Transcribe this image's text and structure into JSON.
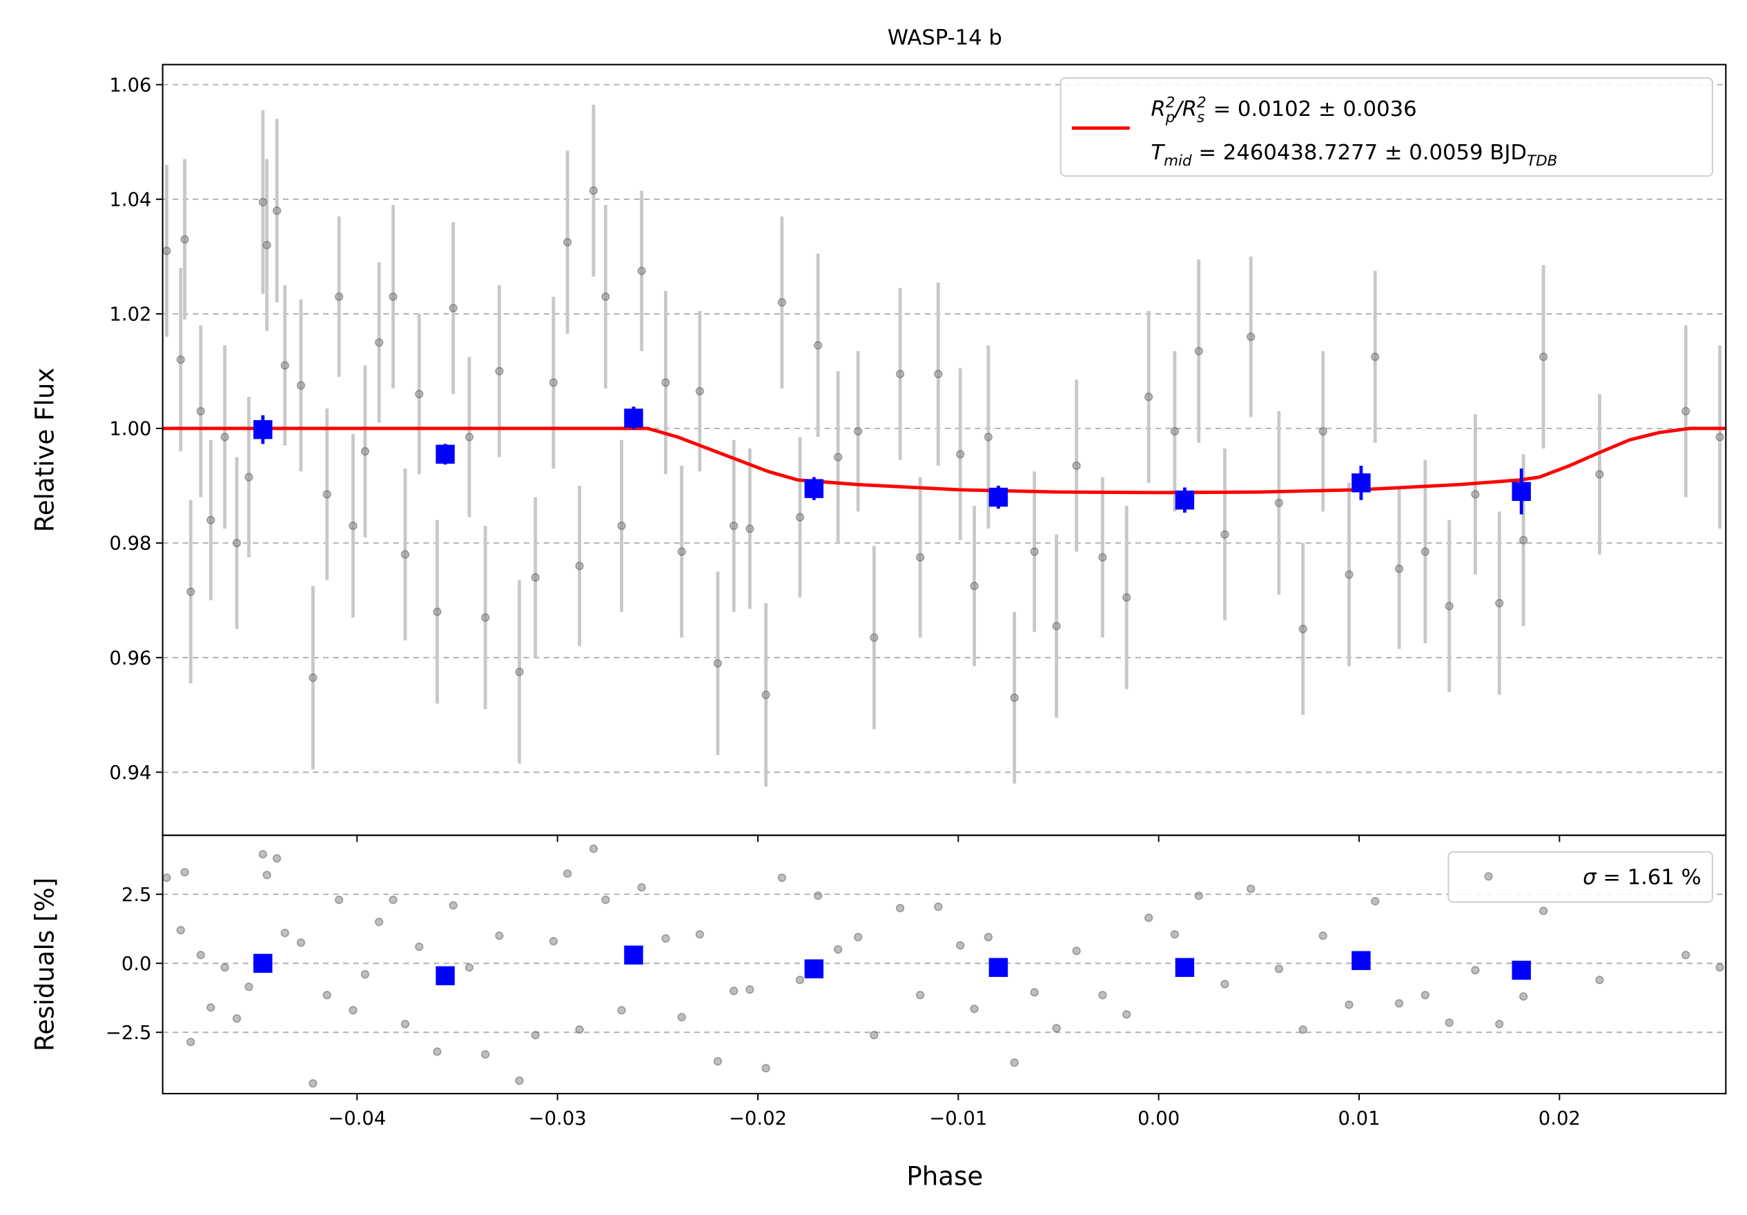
{
  "chart_data": [
    {
      "type": "scatter",
      "title": "WASP-14 b",
      "ylabel": "Relative Flux",
      "xlim": [
        -0.0497,
        0.0283
      ],
      "ylim": [
        0.929,
        1.0635
      ],
      "xticks": [
        {
          "value": -0.04,
          "label": "−0.04"
        },
        {
          "value": -0.03,
          "label": "−0.03"
        },
        {
          "value": -0.02,
          "label": "−0.02"
        },
        {
          "value": -0.01,
          "label": "−0.01"
        },
        {
          "value": 0,
          "label": "0.00"
        },
        0.01,
        0.02
      ],
      "yticks": [
        0.94,
        0.96,
        0.98,
        {
          "value": 1,
          "label": "1.00"
        },
        1.02,
        1.04,
        1.06
      ],
      "grid": true,
      "legend": "upper right",
      "points": {
        "color": "#808080",
        "errcolor": "#c8c8c8",
        "x": [
          -0.0495,
          -0.0488,
          -0.0486,
          -0.0483,
          -0.0478,
          -0.0473,
          -0.0466,
          -0.046,
          -0.0454,
          -0.0447,
          -0.0445,
          -0.044,
          -0.0436,
          -0.0428,
          -0.0422,
          -0.0415,
          -0.0409,
          -0.0402,
          -0.0396,
          -0.0389,
          -0.0382,
          -0.0376,
          -0.0369,
          -0.036,
          -0.0352,
          -0.0344,
          -0.0336,
          -0.0329,
          -0.0319,
          -0.0311,
          -0.0302,
          -0.0295,
          -0.0289,
          -0.0282,
          -0.0276,
          -0.0268,
          -0.0258,
          -0.0246,
          -0.0238,
          -0.0229,
          -0.022,
          -0.0212,
          -0.0204,
          -0.0196,
          -0.0188,
          -0.0179,
          -0.017,
          -0.016,
          -0.015,
          -0.0142,
          -0.0129,
          -0.0119,
          -0.011,
          -0.0099,
          -0.0092,
          -0.0085,
          -0.0072,
          -0.0062,
          -0.0051,
          -0.0041,
          -0.0028,
          -0.0016,
          -0.0005,
          0.0008,
          0.002,
          0.0033,
          0.0046,
          0.006,
          0.0072,
          0.0082,
          0.0095,
          0.0108,
          0.012,
          0.0133,
          0.0145,
          0.0158,
          0.017,
          0.0182,
          0.0192,
          0.022,
          0.0263,
          0.028
        ],
        "y": [
          1.031,
          1.012,
          1.033,
          0.9715,
          1.003,
          0.984,
          0.9985,
          0.98,
          0.9915,
          1.0395,
          1.032,
          1.038,
          1.011,
          1.0075,
          0.9565,
          0.9885,
          1.023,
          0.983,
          0.996,
          1.015,
          1.023,
          0.978,
          1.006,
          0.968,
          1.021,
          0.9985,
          0.967,
          1.01,
          0.9575,
          0.974,
          1.008,
          1.0325,
          0.976,
          1.0415,
          1.023,
          0.983,
          1.0275,
          1.008,
          0.9785,
          1.0065,
          0.959,
          0.983,
          0.9825,
          0.9535,
          1.022,
          0.9845,
          1.0145,
          0.995,
          0.9995,
          0.9635,
          1.0095,
          0.9775,
          1.0095,
          0.9955,
          0.9725,
          0.9985,
          0.953,
          0.9785,
          0.9655,
          0.9935,
          0.9775,
          0.9705,
          1.0055,
          0.9995,
          1.0135,
          0.9815,
          1.016,
          0.987,
          0.965,
          0.9995,
          0.9745,
          1.0125,
          0.9755,
          0.9785,
          0.969,
          0.9885,
          0.9695,
          0.9805,
          1.0125,
          0.992,
          1.003,
          0.9985
        ],
        "err": [
          0.015,
          0.016,
          0.014,
          0.016,
          0.015,
          0.014,
          0.016,
          0.015,
          0.014,
          0.016,
          0.015,
          0.016,
          0.014,
          0.015,
          0.016,
          0.015,
          0.014,
          0.016,
          0.015,
          0.014,
          0.016,
          0.015,
          0.014,
          0.016,
          0.015,
          0.014,
          0.016,
          0.015,
          0.016,
          0.014,
          0.015,
          0.016,
          0.014,
          0.015,
          0.016,
          0.015,
          0.014,
          0.016,
          0.015,
          0.014,
          0.016,
          0.015,
          0.014,
          0.016,
          0.015,
          0.014,
          0.016,
          0.015,
          0.014,
          0.016,
          0.015,
          0.014,
          0.016,
          0.015,
          0.014,
          0.016,
          0.015,
          0.014,
          0.016,
          0.015,
          0.014,
          0.016,
          0.015,
          0.014,
          0.016,
          0.015,
          0.014,
          0.016,
          0.015,
          0.014,
          0.016,
          0.015,
          0.014,
          0.016,
          0.015,
          0.014,
          0.016,
          0.015,
          0.016,
          0.014,
          0.015,
          0.016
        ]
      },
      "binned": {
        "color": "#0000ff",
        "x": [
          -0.0447,
          -0.0356,
          -0.0262,
          -0.0172,
          -0.008,
          0.0013,
          0.0101,
          0.0181
        ],
        "y": [
          0.9998,
          0.9955,
          1.0018,
          0.9895,
          0.988,
          0.9875,
          0.9905,
          0.989
        ],
        "err": [
          0.0025,
          0.0018,
          0.002,
          0.002,
          0.002,
          0.0022,
          0.003,
          0.004
        ]
      },
      "model": {
        "color": "#ff0000",
        "x": [
          -0.0497,
          -0.0255,
          -0.024,
          -0.0225,
          -0.021,
          -0.0195,
          -0.018,
          -0.015,
          -0.01,
          -0.005,
          0,
          0.005,
          0.01,
          0.015,
          0.018,
          0.019,
          0.0205,
          0.022,
          0.0235,
          0.025,
          0.0265,
          0.0283
        ],
        "y": [
          1.0,
          1.0,
          0.9985,
          0.9965,
          0.9945,
          0.9925,
          0.991,
          0.9902,
          0.9893,
          0.9889,
          0.9888,
          0.9889,
          0.9893,
          0.9902,
          0.991,
          0.9915,
          0.9935,
          0.9958,
          0.998,
          0.9993,
          1.0,
          1.0
        ],
        "label": [
          [
            {
              "text": "R",
              "kind": "i"
            },
            {
              "text": "p",
              "kind": "sub"
            },
            {
              "text": "2",
              "kind": "sup"
            },
            {
              "text": "/",
              "kind": "i"
            },
            {
              "text": "R",
              "kind": "i"
            },
            {
              "text": "s",
              "kind": "sub"
            },
            {
              "text": "2",
              "kind": "sup"
            },
            {
              "text": " = 0.0102 ± 0.0036",
              "kind": "n"
            }
          ],
          [
            {
              "text": "T",
              "kind": "i"
            },
            {
              "text": "mid",
              "kind": "sub"
            },
            {
              "text": " = 2460438.7277 ± 0.0059 BJD",
              "kind": "n"
            },
            {
              "text": "TDB",
              "kind": "sub"
            }
          ]
        ]
      }
    },
    {
      "type": "scatter",
      "ylabel": "Residuals [%]",
      "xlabel": "Phase",
      "xlim": [
        -0.0497,
        0.0283
      ],
      "ylim": [
        -4.72,
        4.64
      ],
      "xticks": [
        {
          "value": -0.04,
          "label": "−0.04"
        },
        {
          "value": -0.03,
          "label": "−0.03"
        },
        {
          "value": -0.02,
          "label": "−0.02"
        },
        {
          "value": -0.01,
          "label": "−0.01"
        },
        {
          "value": 0,
          "label": "0.00"
        },
        0.01,
        0.02
      ],
      "yticks": [
        {
          "value": -2.5,
          "label": "−2.5"
        },
        {
          "value": 0,
          "label": "0.0"
        },
        2.5
      ],
      "grid": true,
      "legend": "upper right",
      "points": {
        "color": "#808080",
        "x": [
          -0.0495,
          -0.0488,
          -0.0486,
          -0.0483,
          -0.0478,
          -0.0473,
          -0.0466,
          -0.046,
          -0.0454,
          -0.0447,
          -0.0445,
          -0.044,
          -0.0436,
          -0.0428,
          -0.0422,
          -0.0415,
          -0.0409,
          -0.0402,
          -0.0396,
          -0.0389,
          -0.0382,
          -0.0376,
          -0.0369,
          -0.036,
          -0.0352,
          -0.0344,
          -0.0336,
          -0.0329,
          -0.0319,
          -0.0311,
          -0.0302,
          -0.0295,
          -0.0289,
          -0.0282,
          -0.0276,
          -0.0268,
          -0.0258,
          -0.0246,
          -0.0238,
          -0.0229,
          -0.022,
          -0.0212,
          -0.0204,
          -0.0196,
          -0.0188,
          -0.0179,
          -0.017,
          -0.016,
          -0.015,
          -0.0142,
          -0.0129,
          -0.0119,
          -0.011,
          -0.0099,
          -0.0092,
          -0.0085,
          -0.0072,
          -0.0062,
          -0.0051,
          -0.0041,
          -0.0028,
          -0.0016,
          -0.0005,
          0.0008,
          0.002,
          0.0033,
          0.0046,
          0.006,
          0.0072,
          0.0082,
          0.0095,
          0.0108,
          0.012,
          0.0133,
          0.0145,
          0.0158,
          0.017,
          0.0182,
          0.0192,
          0.022,
          0.0263,
          0.028
        ],
        "y": [
          3.1,
          1.2,
          3.3,
          -2.85,
          0.3,
          -1.6,
          -0.15,
          -2.0,
          -0.85,
          3.95,
          3.2,
          3.8,
          1.1,
          0.75,
          -4.35,
          -1.15,
          2.3,
          -1.7,
          -0.4,
          1.5,
          2.3,
          -2.2,
          0.6,
          -3.2,
          2.1,
          -0.15,
          -3.3,
          1.0,
          -4.25,
          -2.6,
          0.8,
          3.25,
          -2.4,
          4.15,
          2.3,
          -1.7,
          2.75,
          0.9,
          -1.95,
          1.05,
          -3.55,
          -1.0,
          -0.95,
          -3.8,
          3.1,
          -0.6,
          2.45,
          0.5,
          0.95,
          -2.6,
          2.0,
          -1.15,
          2.05,
          0.65,
          -1.65,
          0.95,
          -3.6,
          -1.05,
          -2.35,
          0.45,
          -1.15,
          -1.85,
          1.65,
          1.05,
          2.45,
          -0.75,
          2.7,
          -0.2,
          -2.4,
          1.0,
          -1.5,
          2.25,
          -1.45,
          -1.15,
          -2.15,
          -0.25,
          -2.2,
          -1.2,
          1.9,
          -0.6,
          0.3,
          -0.15
        ]
      },
      "binned": {
        "color": "#0000ff",
        "x": [
          -0.0447,
          -0.0356,
          -0.0262,
          -0.0172,
          -0.008,
          0.0013,
          0.0101,
          0.0181
        ],
        "y": [
          0.0,
          -0.45,
          0.3,
          -0.2,
          -0.15,
          -0.15,
          0.1,
          -0.25
        ]
      },
      "label": [
        [
          {
            "text": "σ",
            "kind": "i"
          },
          {
            "text": " = 1.61 %",
            "kind": "n"
          }
        ]
      ]
    }
  ]
}
